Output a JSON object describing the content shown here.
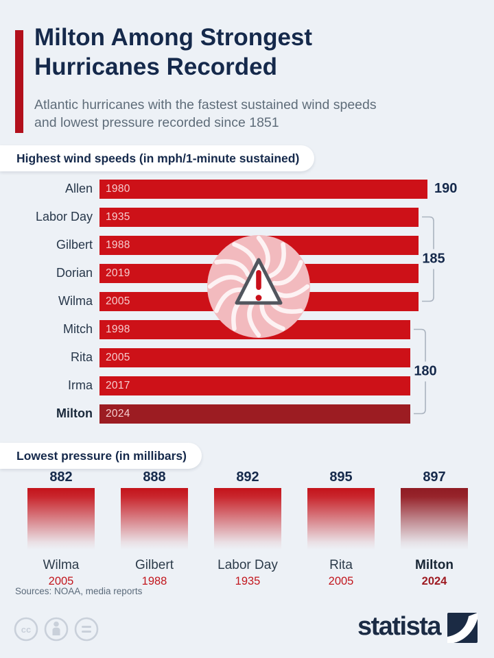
{
  "header": {
    "title_line1": "Milton Among Strongest",
    "title_line2": "Hurricanes Recorded",
    "subtitle_line1": "Atlantic hurricanes with the fastest sustained wind speeds",
    "subtitle_line2": "and lowest pressure recorded since 1851"
  },
  "sections": {
    "wind": {
      "heading": "Highest wind speeds (in mph/1-minute sustained)"
    },
    "pressure": {
      "heading": "Lowest pressure (in millibars)"
    }
  },
  "chart_data": [
    {
      "type": "bar",
      "orientation": "horizontal",
      "title": "Highest wind speeds (in mph/1-minute sustained)",
      "unit": "mph",
      "xlim": [
        0,
        190
      ],
      "rows": [
        {
          "name": "Allen",
          "year": "1980",
          "value": 190,
          "highlight": false
        },
        {
          "name": "Labor Day",
          "year": "1935",
          "value": 185,
          "highlight": false
        },
        {
          "name": "Gilbert",
          "year": "1988",
          "value": 185,
          "highlight": false
        },
        {
          "name": "Dorian",
          "year": "2019",
          "value": 185,
          "highlight": false
        },
        {
          "name": "Wilma",
          "year": "2005",
          "value": 185,
          "highlight": false
        },
        {
          "name": "Mitch",
          "year": "1998",
          "value": 180,
          "highlight": false
        },
        {
          "name": "Rita",
          "year": "2005",
          "value": 180,
          "highlight": false
        },
        {
          "name": "Irma",
          "year": "2017",
          "value": 180,
          "highlight": false
        },
        {
          "name": "Milton",
          "year": "2024",
          "value": 180,
          "highlight": true
        }
      ],
      "annotations": [
        {
          "label": "190",
          "kind": "inline",
          "row": 0
        },
        {
          "label": "185",
          "kind": "bracket",
          "from_row": 1,
          "to_row": 4
        },
        {
          "label": "180",
          "kind": "bracket",
          "from_row": 5,
          "to_row": 8
        }
      ]
    },
    {
      "type": "bar",
      "orientation": "vertical",
      "title": "Lowest pressure (in millibars)",
      "unit": "millibars",
      "columns": [
        {
          "name": "Wilma",
          "year": "2005",
          "value": 882,
          "highlight": false
        },
        {
          "name": "Gilbert",
          "year": "1988",
          "value": 888,
          "highlight": false
        },
        {
          "name": "Labor Day",
          "year": "1935",
          "value": 892,
          "highlight": false
        },
        {
          "name": "Rita",
          "year": "2005",
          "value": 895,
          "highlight": false
        },
        {
          "name": "Milton",
          "year": "2024",
          "value": 897,
          "highlight": true
        }
      ]
    }
  ],
  "icons": {
    "center_icon": "hurricane-swirl-with-warning-triangle",
    "license_icons": [
      "cc-icon",
      "attribution-person-icon",
      "equals-icon"
    ],
    "brand_mark": "statista-swoosh-square"
  },
  "footer": {
    "sources": "Sources: NOAA, media reports",
    "brand_wordmark": "statista"
  },
  "colors": {
    "background": "#edf1f6",
    "bar_red": "#cd1118",
    "highlight_dark_red": "#9c1c22",
    "accent_bar_red": "#b2101c",
    "navy_text": "#15294b",
    "subtitle_gray": "#5e6c79",
    "bracket_gray": "#aab3bf",
    "year_red": "#c2161d"
  }
}
